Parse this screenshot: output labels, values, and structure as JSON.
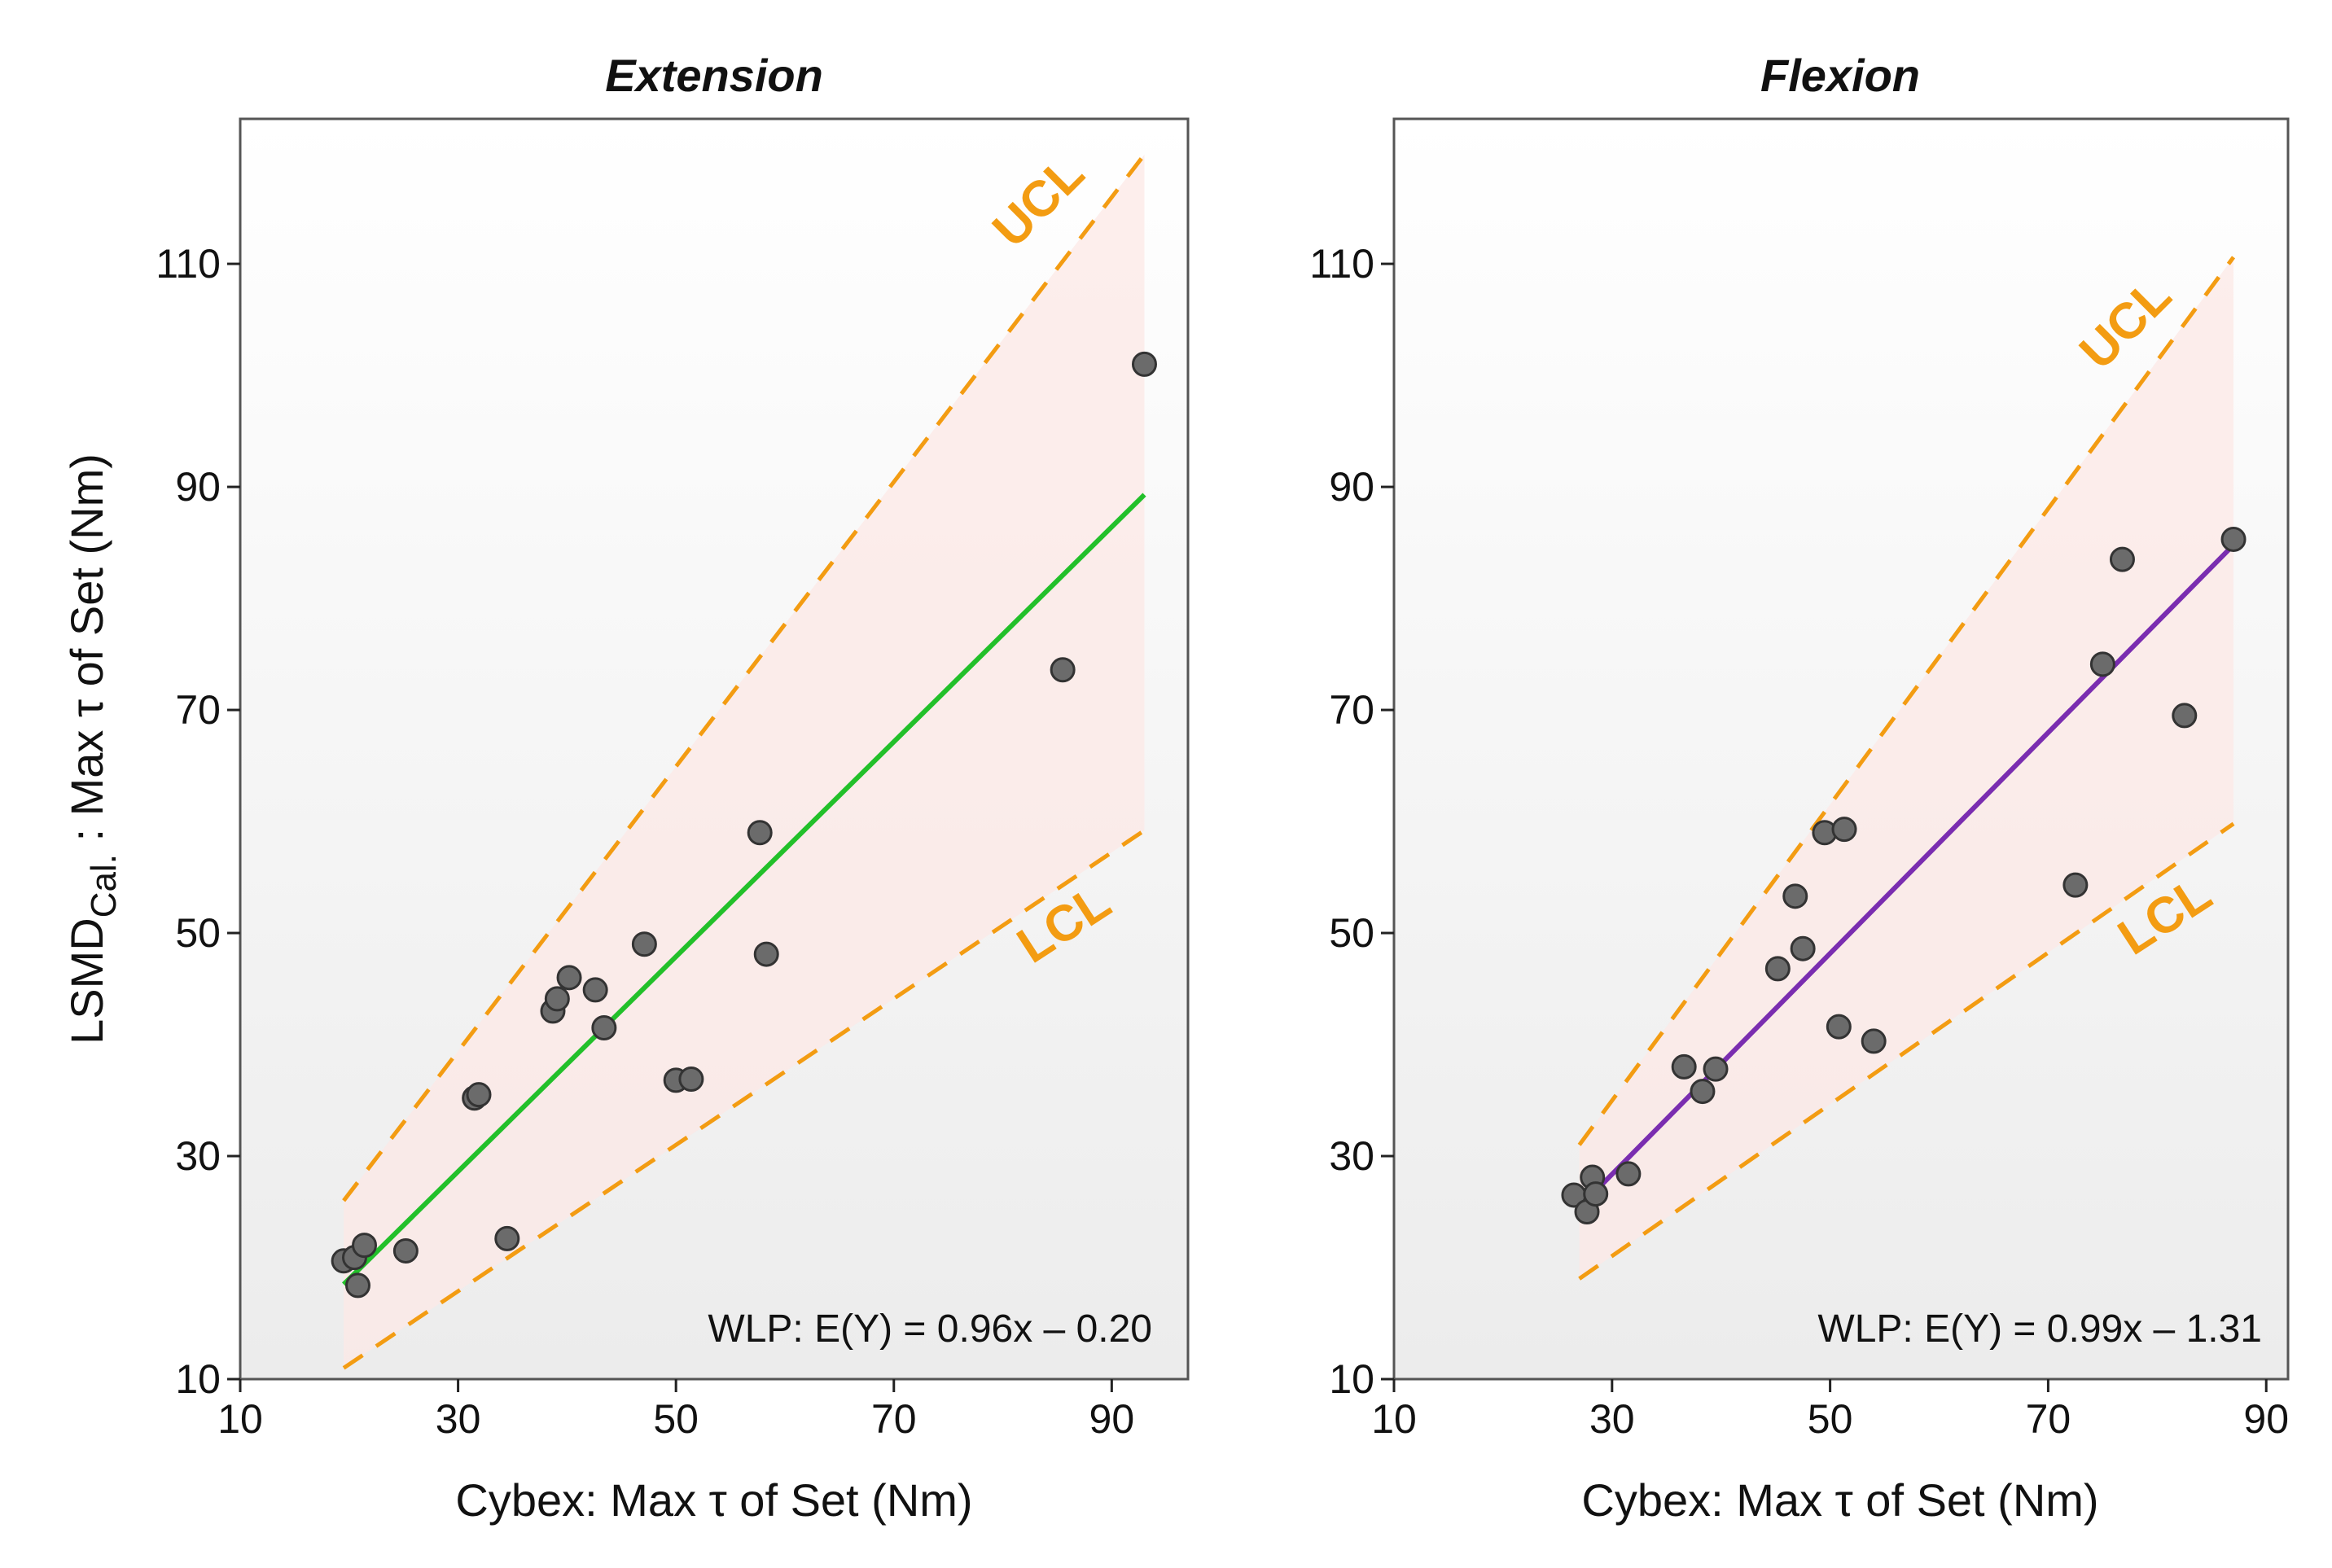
{
  "colors": {
    "band_fill": "#fce8e6",
    "limit_line": "#f39c12",
    "point_fill": "#6b6b6b",
    "point_edge": "#333333",
    "frame": "#555555",
    "panel_top": "#ffffff",
    "panel_bottom": "#ececec"
  },
  "chart_data": [
    {
      "type": "scatter",
      "title": "Extension",
      "xlabel": "Cybex: Max τ of Set (Nm)",
      "ylabel_main": "LSMD",
      "ylabel_sub": "Cal.",
      "ylabel_rest": " :  Max τ of Set (Nm)",
      "xlim": [
        10,
        97
      ],
      "ylim": [
        10,
        123
      ],
      "xticks": [
        10,
        30,
        50,
        70,
        90
      ],
      "yticks": [
        10,
        30,
        50,
        70,
        90,
        110
      ],
      "fit_color": "#22c02a",
      "equation": "WLP: E(Y) = 0.96x – 0.20",
      "ucl_label": "UCL",
      "lcl_label": "LCL",
      "fit": {
        "x": [
          19.5,
          93
        ],
        "y": [
          18.5,
          89.3
        ]
      },
      "ucl": {
        "x": [
          19.5,
          93
        ],
        "y": [
          26,
          119.8
        ]
      },
      "lcl": {
        "x": [
          19.5,
          93
        ],
        "y": [
          11,
          59.2
        ]
      },
      "points": {
        "x": [
          19.5,
          20.5,
          20.8,
          21.4,
          25.2,
          31.5,
          31.9,
          34.5,
          38.7,
          39.1,
          40.2,
          42.6,
          43.4,
          47.1,
          50.0,
          51.4,
          57.7,
          58.3,
          85.5,
          93.0
        ],
        "y": [
          20.6,
          20.9,
          18.4,
          22.0,
          21.5,
          35.2,
          35.5,
          22.6,
          43.0,
          44.1,
          46.0,
          44.9,
          41.5,
          49.0,
          36.8,
          36.9,
          59.0,
          48.1,
          73.6,
          101.0
        ]
      }
    },
    {
      "type": "scatter",
      "title": "Flexion",
      "xlabel": "Cybex: Max τ of Set (Nm)",
      "xlim": [
        10,
        92
      ],
      "ylim": [
        10,
        123
      ],
      "xticks": [
        10,
        30,
        50,
        70,
        90
      ],
      "yticks": [
        10,
        30,
        50,
        70,
        90,
        110
      ],
      "fit_color": "#7a2db0",
      "equation": "WLP: E(Y) = 0.99x – 1.31",
      "ucl_label": "UCL",
      "lcl_label": "LCL",
      "fit": {
        "x": [
          27,
          87
        ],
        "y": [
          25.4,
          84.8
        ]
      },
      "ucl": {
        "x": [
          27,
          87
        ],
        "y": [
          31,
          110.6
        ]
      },
      "lcl": {
        "x": [
          27,
          87
        ],
        "y": [
          19,
          59.8
        ]
      },
      "points": {
        "x": [
          26.5,
          27.7,
          28.2,
          28.5,
          31.5,
          36.6,
          38.3,
          39.5,
          45.2,
          46.8,
          47.5,
          49.5,
          50.8,
          51.3,
          54.0,
          72.5,
          75.0,
          76.8,
          82.5,
          87.0
        ],
        "y": [
          26.5,
          25.0,
          28.1,
          26.6,
          28.4,
          38.0,
          35.8,
          37.8,
          46.8,
          53.3,
          48.6,
          59.0,
          41.6,
          59.3,
          40.3,
          54.3,
          74.1,
          83.5,
          69.5,
          85.3
        ]
      }
    }
  ]
}
